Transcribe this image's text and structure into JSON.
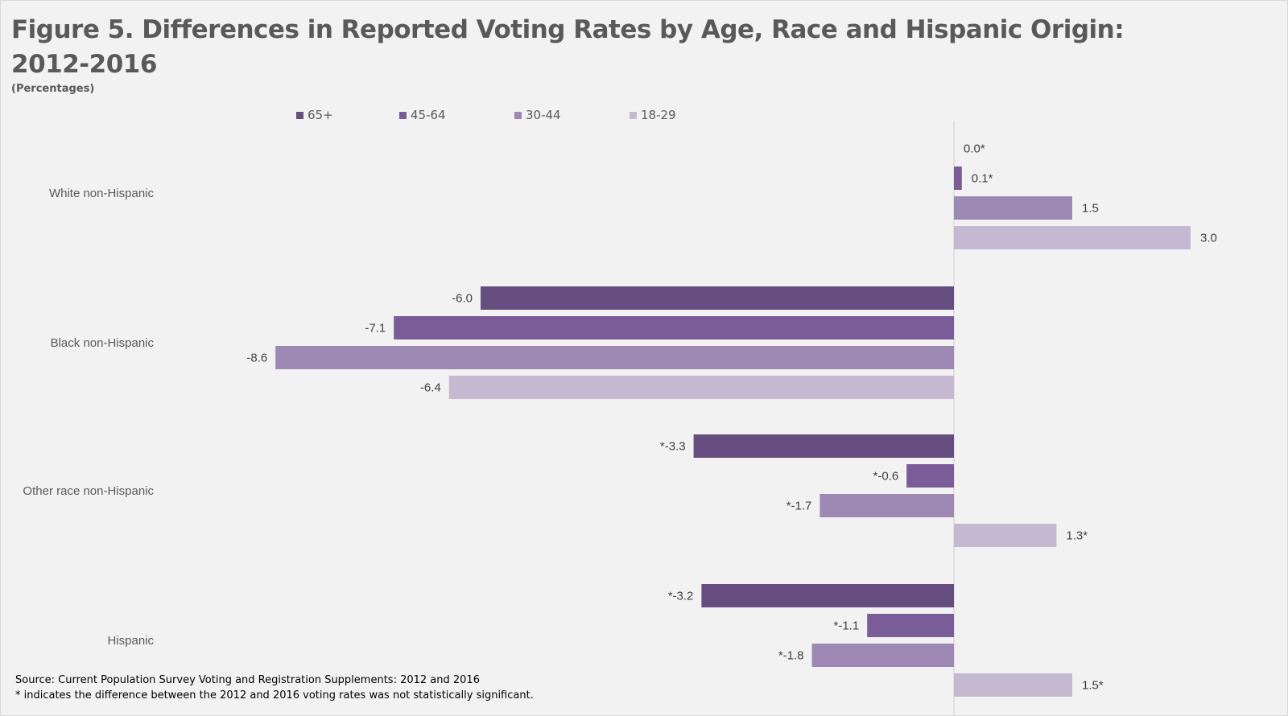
{
  "title_line1": "Figure 5. Differences in Reported Voting Rates by Age, Race and Hispanic Origin:",
  "title_line2": "2012-2016",
  "subtitle": "(Percentages)",
  "source": "Source: Current Population Survey Voting and Registration Supplements: 2012 and 2016",
  "note": "* indicates the difference between the 2012 and 2016 voting rates was not statistically significant.",
  "chart_data": {
    "type": "bar",
    "orientation": "horizontal",
    "title": "Figure 5. Differences in Reported Voting Rates by Age, Race and Hispanic Origin: 2012-2016",
    "categories": [
      "White non-Hispanic",
      "Black non-Hispanic",
      "Other race non-Hispanic",
      "Hispanic"
    ],
    "legend_position": "top",
    "grid": false,
    "xlim": [
      -8.6,
      3.5
    ],
    "series": [
      {
        "name": "65+",
        "color": "#664d7f",
        "values": [
          0.0,
          -6.0,
          -3.3,
          -3.2
        ],
        "labels": [
          "0.0*",
          "-6.0",
          "*-3.3",
          "*-3.2"
        ]
      },
      {
        "name": "45-64",
        "color": "#7a5c99",
        "values": [
          0.1,
          -7.1,
          -0.6,
          -1.1
        ],
        "labels": [
          "0.1*",
          "-7.1",
          "*-0.6",
          "*-1.1"
        ]
      },
      {
        "name": "30-44",
        "color": "#9e89b4",
        "values": [
          1.5,
          -8.6,
          -1.7,
          -1.8
        ],
        "labels": [
          "1.5",
          "-8.6",
          "*-1.7",
          "*-1.8"
        ]
      },
      {
        "name": "18-29",
        "color": "#c4b9d1",
        "values": [
          3.0,
          -6.4,
          1.3,
          1.5
        ],
        "labels": [
          "3.0",
          "-6.4",
          "1.3*",
          "1.5*"
        ]
      }
    ]
  }
}
